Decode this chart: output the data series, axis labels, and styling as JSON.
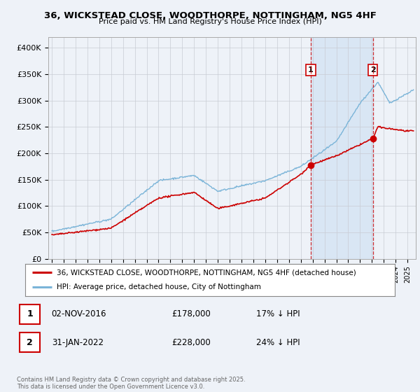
{
  "title": "36, WICKSTEAD CLOSE, WOODTHORPE, NOTTINGHAM, NG5 4HF",
  "subtitle": "Price paid vs. HM Land Registry's House Price Index (HPI)",
  "hpi_color": "#7ab4d8",
  "price_color": "#cc0000",
  "bg_color": "#eef2f8",
  "plot_bg": "#eef2f8",
  "shade_color": "#d4e4f4",
  "legend_label_price": "36, WICKSTEAD CLOSE, WOODTHORPE, NOTTINGHAM, NG5 4HF (detached house)",
  "legend_label_hpi": "HPI: Average price, detached house, City of Nottingham",
  "footnote": "Contains HM Land Registry data © Crown copyright and database right 2025.\nThis data is licensed under the Open Government Licence v3.0.",
  "sale1_label": "1",
  "sale1_date": "02-NOV-2016",
  "sale1_price": "£178,000",
  "sale1_hpi": "17% ↓ HPI",
  "sale1_year": 2016.84,
  "sale1_value": 178000,
  "sale2_label": "2",
  "sale2_date": "31-JAN-2022",
  "sale2_price": "£228,000",
  "sale2_hpi": "24% ↓ HPI",
  "sale2_year": 2022.08,
  "sale2_value": 228000,
  "ylim": [
    0,
    420000
  ],
  "yticks": [
    0,
    50000,
    100000,
    150000,
    200000,
    250000,
    300000,
    350000,
    400000
  ],
  "ytick_labels": [
    "£0",
    "£50K",
    "£100K",
    "£150K",
    "£200K",
    "£250K",
    "£300K",
    "£350K",
    "£400K"
  ]
}
